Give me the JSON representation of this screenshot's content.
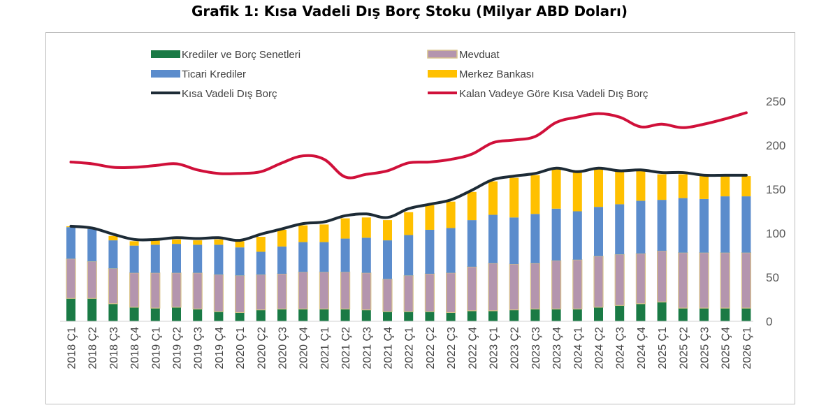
{
  "title": "Grafik 1: Kısa Vadeli Dış Borç Stoku (Milyar ABD Doları)",
  "colors": {
    "krediler": "#1a7a45",
    "mevduat": "#b495ae",
    "mevduat_border": "#d9c48a",
    "ticari": "#5b8ccc",
    "merkez": "#ffc000",
    "kisa_line": "#1d2b36",
    "kalan_line": "#d0103a"
  },
  "chart_data": {
    "type": "bar",
    "stacked": true,
    "title": "Grafik 1: Kısa Vadeli Dış Borç Stoku (Milyar ABD Doları)",
    "legend_position": "top",
    "ylim": [
      0,
      250
    ],
    "yticks": [
      0,
      50,
      100,
      150,
      200,
      250
    ],
    "y_axis_side": "right",
    "grid": false,
    "categories": [
      "2018 Ç1",
      "2018 Ç2",
      "2018 Ç3",
      "2018 Ç4",
      "2019 Ç1",
      "2019 Ç2",
      "2019 Ç3",
      "2019 Ç4",
      "2020 Ç1",
      "2020 Ç2",
      "2020 Ç3",
      "2020 Ç4",
      "2021 Ç1",
      "2021 Ç2",
      "2021 Ç3",
      "2021 Ç4",
      "2022 Ç1",
      "2022 Ç2",
      "2022 Ç3",
      "2022 Ç4",
      "2023 Ç1",
      "2023 Ç2",
      "2023 Ç3",
      "2023 Ç4",
      "2024 Ç1",
      "2024 Ç2",
      "2024 Ç3",
      "2024 Ç4",
      "2025 Ç1",
      "2025 Ç2",
      "2025 Ç3",
      "2025 Ç4",
      "2026 Ç1"
    ],
    "series": [
      {
        "name": "Krediler ve Borç Senetleri",
        "kind": "bar",
        "values": [
          26,
          26,
          20,
          16,
          15,
          16,
          14,
          11,
          10,
          13,
          14,
          14,
          14,
          14,
          13,
          11,
          11,
          11,
          10,
          12,
          12,
          13,
          14,
          14,
          14,
          16,
          18,
          20,
          22,
          15,
          15,
          15,
          15
        ]
      },
      {
        "name": "Mevduat",
        "kind": "bar",
        "values": [
          45,
          42,
          40,
          39,
          40,
          39,
          41,
          42,
          42,
          40,
          40,
          42,
          42,
          42,
          42,
          37,
          41,
          43,
          45,
          50,
          54,
          52,
          52,
          55,
          56,
          58,
          58,
          57,
          58,
          63,
          63,
          63,
          63
        ]
      },
      {
        "name": "Ticari Krediler",
        "kind": "bar",
        "values": [
          36,
          37,
          32,
          31,
          32,
          33,
          32,
          34,
          32,
          26,
          31,
          34,
          34,
          38,
          40,
          44,
          46,
          50,
          51,
          53,
          55,
          53,
          56,
          59,
          55,
          56,
          57,
          60,
          58,
          62,
          61,
          64,
          64
        ]
      },
      {
        "name": "Merkez Bankası",
        "kind": "bar",
        "values": [
          1,
          1,
          5,
          5,
          5,
          5,
          5,
          6,
          7,
          17,
          19,
          19,
          20,
          23,
          23,
          23,
          26,
          28,
          30,
          32,
          38,
          45,
          44,
          46,
          44,
          43,
          38,
          34,
          29,
          27,
          27,
          23,
          23
        ]
      },
      {
        "name": "Kısa Vadeli Dış Borç",
        "kind": "line",
        "values": [
          108,
          106,
          99,
          93,
          93,
          95,
          94,
          95,
          92,
          99,
          105,
          111,
          113,
          120,
          122,
          118,
          128,
          133,
          138,
          149,
          161,
          165,
          168,
          174,
          170,
          174,
          171,
          172,
          169,
          169,
          166,
          166,
          166
        ]
      },
      {
        "name": "Kalan Vadeye Göre Kısa Vadeli Dış Borç",
        "kind": "line",
        "values": [
          181,
          179,
          175,
          175,
          177,
          179,
          172,
          168,
          168,
          170,
          180,
          188,
          184,
          164,
          167,
          171,
          180,
          181,
          184,
          190,
          203,
          206,
          210,
          226,
          232,
          236,
          232,
          221,
          224,
          220,
          224,
          230,
          237
        ]
      }
    ]
  }
}
